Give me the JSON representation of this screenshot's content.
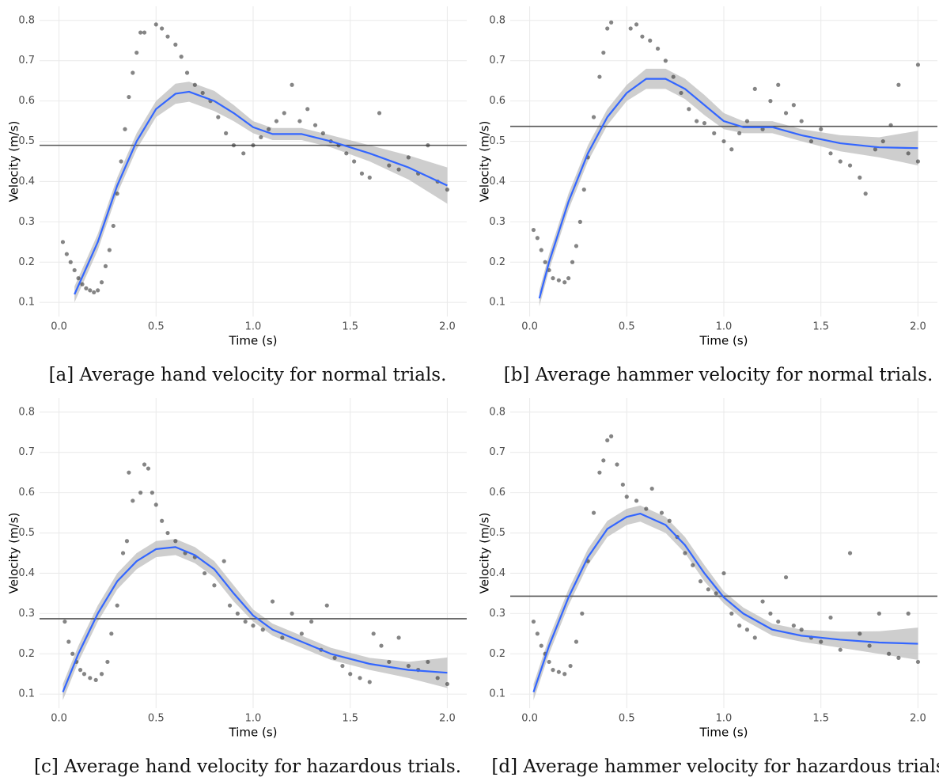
{
  "chart_data": [
    {
      "type": "scatter",
      "caption": "[a] Average hand velocity for normal trials.",
      "xlabel": "Time (s)",
      "ylabel": "Velocity (m/s)",
      "xlim": [
        -0.1,
        2.1
      ],
      "ylim": [
        0.065,
        0.835
      ],
      "xticks": [
        {
          "value": 0,
          "label": "0.0"
        },
        0.5,
        {
          "value": 1,
          "label": "1.0"
        },
        1.5,
        {
          "value": 2,
          "label": "2.0"
        }
      ],
      "yticks": [
        0.1,
        0.2,
        0.3,
        0.4,
        0.5,
        0.6,
        0.7,
        0.8
      ],
      "grid": true,
      "points": {
        "color": "#333333",
        "x": [
          0.02,
          0.04,
          0.06,
          0.08,
          0.1,
          0.12,
          0.14,
          0.16,
          0.18,
          0.2,
          0.22,
          0.24,
          0.26,
          0.28,
          0.3,
          0.32,
          0.34,
          0.36,
          0.38,
          0.4,
          0.42,
          0.44,
          0.5,
          0.53,
          0.56,
          0.6,
          0.63,
          0.66,
          0.7,
          0.74,
          0.78,
          0.82,
          0.86,
          0.9,
          0.95,
          1.0,
          1.04,
          1.08,
          1.12,
          1.16,
          1.2,
          1.24,
          1.28,
          1.32,
          1.36,
          1.4,
          1.44,
          1.48,
          1.52,
          1.56,
          1.6,
          1.65,
          1.7,
          1.75,
          1.8,
          1.85,
          1.9,
          1.95,
          2.0
        ],
        "y": [
          0.25,
          0.22,
          0.2,
          0.18,
          0.16,
          0.145,
          0.135,
          0.13,
          0.125,
          0.13,
          0.15,
          0.19,
          0.23,
          0.29,
          0.37,
          0.45,
          0.53,
          0.61,
          0.67,
          0.72,
          0.77,
          0.77,
          0.79,
          0.78,
          0.76,
          0.74,
          0.71,
          0.67,
          0.64,
          0.62,
          0.6,
          0.56,
          0.52,
          0.49,
          0.47,
          0.49,
          0.51,
          0.53,
          0.55,
          0.57,
          0.64,
          0.55,
          0.58,
          0.54,
          0.52,
          0.5,
          0.49,
          0.47,
          0.45,
          0.42,
          0.41,
          0.57,
          0.44,
          0.43,
          0.46,
          0.42,
          0.49,
          0.4,
          0.38
        ]
      },
      "smooth": {
        "color": "#3366ff",
        "band_color": "#bdbdbd",
        "x": [
          0.08,
          0.2,
          0.3,
          0.4,
          0.5,
          0.6,
          0.67,
          0.8,
          0.9,
          1.0,
          1.1,
          1.25,
          1.4,
          1.6,
          1.8,
          2.0
        ],
        "y": [
          0.12,
          0.25,
          0.39,
          0.5,
          0.58,
          0.618,
          0.623,
          0.6,
          0.57,
          0.535,
          0.518,
          0.518,
          0.5,
          0.47,
          0.435,
          0.39
        ],
        "lower": [
          0.1,
          0.23,
          0.37,
          0.48,
          0.56,
          0.593,
          0.598,
          0.575,
          0.55,
          0.52,
          0.503,
          0.503,
          0.485,
          0.45,
          0.405,
          0.345
        ],
        "upper": [
          0.14,
          0.27,
          0.41,
          0.52,
          0.6,
          0.643,
          0.648,
          0.625,
          0.59,
          0.55,
          0.533,
          0.533,
          0.515,
          0.49,
          0.465,
          0.435
        ]
      },
      "hline": {
        "value": 0.49,
        "color": "#555555"
      }
    },
    {
      "type": "scatter",
      "caption": "[b] Average hammer velocity for normal trials.",
      "xlabel": "Time (s)",
      "ylabel": "Velocity (m/s)",
      "xlim": [
        -0.1,
        2.1
      ],
      "ylim": [
        0.065,
        0.835
      ],
      "xticks": [
        {
          "value": 0,
          "label": "0.0"
        },
        0.5,
        {
          "value": 1,
          "label": "1.0"
        },
        1.5,
        {
          "value": 2,
          "label": "2.0"
        }
      ],
      "yticks": [
        0.1,
        0.2,
        0.3,
        0.4,
        0.5,
        0.6,
        0.7,
        0.8
      ],
      "grid": true,
      "points": {
        "color": "#333333",
        "x": [
          0.02,
          0.04,
          0.06,
          0.08,
          0.1,
          0.12,
          0.15,
          0.18,
          0.2,
          0.22,
          0.24,
          0.26,
          0.28,
          0.3,
          0.33,
          0.36,
          0.38,
          0.4,
          0.42,
          0.52,
          0.55,
          0.58,
          0.62,
          0.66,
          0.7,
          0.74,
          0.78,
          0.82,
          0.86,
          0.9,
          0.95,
          1.0,
          1.04,
          1.08,
          1.12,
          1.16,
          1.2,
          1.24,
          1.28,
          1.32,
          1.36,
          1.4,
          1.45,
          1.5,
          1.55,
          1.6,
          1.65,
          1.7,
          1.73,
          1.78,
          1.82,
          1.86,
          1.9,
          1.95,
          2.0,
          2.0
        ],
        "y": [
          0.28,
          0.26,
          0.23,
          0.2,
          0.18,
          0.16,
          0.155,
          0.15,
          0.16,
          0.2,
          0.24,
          0.3,
          0.38,
          0.46,
          0.56,
          0.66,
          0.72,
          0.78,
          0.795,
          0.78,
          0.79,
          0.76,
          0.75,
          0.73,
          0.7,
          0.66,
          0.62,
          0.58,
          0.55,
          0.545,
          0.52,
          0.5,
          0.48,
          0.52,
          0.55,
          0.63,
          0.53,
          0.6,
          0.64,
          0.57,
          0.59,
          0.55,
          0.5,
          0.53,
          0.47,
          0.45,
          0.44,
          0.41,
          0.37,
          0.48,
          0.5,
          0.54,
          0.64,
          0.47,
          0.69,
          0.45
        ]
      },
      "smooth": {
        "color": "#3366ff",
        "band_color": "#bdbdbd",
        "x": [
          0.05,
          0.1,
          0.2,
          0.3,
          0.4,
          0.5,
          0.6,
          0.7,
          0.8,
          0.9,
          1.0,
          1.1,
          1.25,
          1.4,
          1.6,
          1.8,
          2.0
        ],
        "y": [
          0.11,
          0.2,
          0.35,
          0.47,
          0.56,
          0.62,
          0.655,
          0.655,
          0.63,
          0.59,
          0.55,
          0.535,
          0.535,
          0.515,
          0.495,
          0.485,
          0.483
        ],
        "lower": [
          0.09,
          0.18,
          0.33,
          0.45,
          0.54,
          0.6,
          0.63,
          0.63,
          0.605,
          0.565,
          0.53,
          0.52,
          0.52,
          0.5,
          0.475,
          0.46,
          0.44
        ],
        "upper": [
          0.13,
          0.22,
          0.37,
          0.49,
          0.58,
          0.64,
          0.68,
          0.68,
          0.655,
          0.615,
          0.57,
          0.55,
          0.55,
          0.53,
          0.515,
          0.51,
          0.526
        ]
      },
      "hline": {
        "value": 0.537,
        "color": "#555555"
      }
    },
    {
      "type": "scatter",
      "caption": "[c] Average hand velocity for hazardous trials.",
      "xlabel": "Time (s)",
      "ylabel": "Velocity (m/s)",
      "xlim": [
        -0.1,
        2.1
      ],
      "ylim": [
        0.065,
        0.835
      ],
      "xticks": [
        {
          "value": 0,
          "label": "0.0"
        },
        0.5,
        {
          "value": 1,
          "label": "1.0"
        },
        1.5,
        {
          "value": 2,
          "label": "2.0"
        }
      ],
      "yticks": [
        0.1,
        0.2,
        0.3,
        0.4,
        0.5,
        0.6,
        0.7,
        0.8
      ],
      "grid": true,
      "points": {
        "color": "#333333",
        "x": [
          0.03,
          0.05,
          0.07,
          0.09,
          0.11,
          0.13,
          0.16,
          0.19,
          0.22,
          0.25,
          0.27,
          0.3,
          0.33,
          0.35,
          0.36,
          0.38,
          0.42,
          0.44,
          0.46,
          0.48,
          0.5,
          0.53,
          0.56,
          0.6,
          0.65,
          0.7,
          0.75,
          0.8,
          0.85,
          0.88,
          0.92,
          0.96,
          1.0,
          1.05,
          1.1,
          1.15,
          1.2,
          1.25,
          1.3,
          1.35,
          1.38,
          1.42,
          1.46,
          1.5,
          1.55,
          1.6,
          1.62,
          1.66,
          1.7,
          1.75,
          1.8,
          1.85,
          1.9,
          1.95,
          2.0
        ],
        "y": [
          0.28,
          0.23,
          0.2,
          0.18,
          0.16,
          0.15,
          0.14,
          0.135,
          0.15,
          0.18,
          0.25,
          0.32,
          0.45,
          0.48,
          0.65,
          0.58,
          0.6,
          0.67,
          0.66,
          0.6,
          0.57,
          0.53,
          0.5,
          0.48,
          0.45,
          0.44,
          0.4,
          0.37,
          0.43,
          0.32,
          0.3,
          0.28,
          0.27,
          0.26,
          0.33,
          0.24,
          0.3,
          0.25,
          0.28,
          0.21,
          0.32,
          0.19,
          0.17,
          0.15,
          0.14,
          0.13,
          0.25,
          0.22,
          0.18,
          0.24,
          0.17,
          0.16,
          0.18,
          0.14,
          0.125
        ]
      },
      "smooth": {
        "color": "#3366ff",
        "band_color": "#bdbdbd",
        "x": [
          0.02,
          0.1,
          0.2,
          0.3,
          0.4,
          0.5,
          0.6,
          0.7,
          0.8,
          0.9,
          1.0,
          1.1,
          1.25,
          1.4,
          1.6,
          1.8,
          2.0
        ],
        "y": [
          0.105,
          0.2,
          0.3,
          0.38,
          0.43,
          0.46,
          0.465,
          0.445,
          0.41,
          0.35,
          0.295,
          0.26,
          0.23,
          0.2,
          0.175,
          0.16,
          0.153
        ],
        "lower": [
          0.085,
          0.18,
          0.28,
          0.36,
          0.41,
          0.44,
          0.445,
          0.425,
          0.39,
          0.33,
          0.28,
          0.245,
          0.215,
          0.185,
          0.16,
          0.14,
          0.115
        ],
        "upper": [
          0.125,
          0.22,
          0.32,
          0.4,
          0.45,
          0.48,
          0.485,
          0.465,
          0.43,
          0.37,
          0.31,
          0.275,
          0.245,
          0.215,
          0.19,
          0.18,
          0.191
        ]
      },
      "hline": {
        "value": 0.287,
        "color": "#555555"
      }
    },
    {
      "type": "scatter",
      "caption": "[d] Average hammer velocity for hazardous trials",
      "xlabel": "Time (s)",
      "ylabel": "Velocity (m/s)",
      "xlim": [
        -0.1,
        2.1
      ],
      "ylim": [
        0.065,
        0.835
      ],
      "xticks": [
        {
          "value": 0,
          "label": "0.0"
        },
        0.5,
        {
          "value": 1,
          "label": "1.0"
        },
        1.5,
        {
          "value": 2,
          "label": "2.0"
        }
      ],
      "yticks": [
        0.1,
        0.2,
        0.3,
        0.4,
        0.5,
        0.6,
        0.7,
        0.8
      ],
      "grid": true,
      "points": {
        "color": "#333333",
        "x": [
          0.02,
          0.04,
          0.06,
          0.08,
          0.1,
          0.12,
          0.15,
          0.18,
          0.21,
          0.24,
          0.27,
          0.3,
          0.33,
          0.36,
          0.38,
          0.4,
          0.42,
          0.45,
          0.48,
          0.5,
          0.55,
          0.6,
          0.63,
          0.68,
          0.72,
          0.76,
          0.8,
          0.84,
          0.88,
          0.92,
          0.96,
          1.0,
          1.04,
          1.08,
          1.12,
          1.16,
          1.2,
          1.24,
          1.28,
          1.32,
          1.36,
          1.4,
          1.45,
          1.5,
          1.55,
          1.6,
          1.65,
          1.7,
          1.75,
          1.8,
          1.85,
          1.9,
          1.95,
          2.0
        ],
        "y": [
          0.28,
          0.25,
          0.22,
          0.2,
          0.18,
          0.16,
          0.155,
          0.15,
          0.17,
          0.23,
          0.3,
          0.43,
          0.55,
          0.65,
          0.68,
          0.73,
          0.74,
          0.67,
          0.62,
          0.59,
          0.58,
          0.56,
          0.61,
          0.55,
          0.53,
          0.49,
          0.45,
          0.42,
          0.38,
          0.36,
          0.35,
          0.4,
          0.3,
          0.27,
          0.26,
          0.24,
          0.33,
          0.3,
          0.28,
          0.39,
          0.27,
          0.26,
          0.24,
          0.23,
          0.29,
          0.21,
          0.45,
          0.25,
          0.22,
          0.3,
          0.2,
          0.19,
          0.3,
          0.18
        ]
      },
      "smooth": {
        "color": "#3366ff",
        "band_color": "#bdbdbd",
        "x": [
          0.02,
          0.1,
          0.2,
          0.3,
          0.4,
          0.5,
          0.57,
          0.7,
          0.8,
          0.9,
          1.0,
          1.1,
          1.25,
          1.4,
          1.6,
          1.8,
          2.0
        ],
        "y": [
          0.105,
          0.22,
          0.34,
          0.44,
          0.51,
          0.54,
          0.548,
          0.52,
          0.47,
          0.4,
          0.34,
          0.3,
          0.26,
          0.245,
          0.235,
          0.228,
          0.225
        ],
        "lower": [
          0.085,
          0.2,
          0.32,
          0.42,
          0.49,
          0.52,
          0.528,
          0.5,
          0.45,
          0.38,
          0.325,
          0.285,
          0.245,
          0.23,
          0.215,
          0.2,
          0.185
        ],
        "upper": [
          0.125,
          0.24,
          0.36,
          0.46,
          0.53,
          0.56,
          0.568,
          0.54,
          0.49,
          0.42,
          0.355,
          0.315,
          0.275,
          0.26,
          0.255,
          0.256,
          0.265
        ]
      },
      "hline": {
        "value": 0.343,
        "color": "#555555"
      }
    }
  ]
}
